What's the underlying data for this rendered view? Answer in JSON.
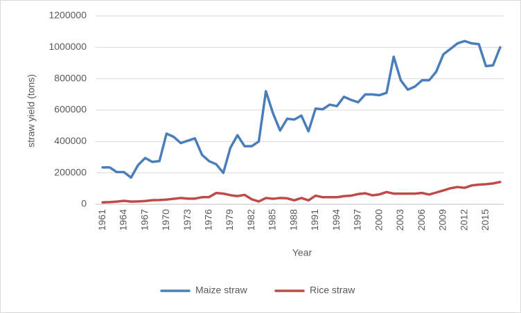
{
  "chart_data": {
    "type": "line",
    "x_label": "Year",
    "y_label": "straw yield (tons)",
    "categories": [
      "1961",
      null,
      null,
      "1964",
      null,
      null,
      "1967",
      null,
      null,
      "1970",
      null,
      null,
      "1973",
      null,
      null,
      "1976",
      null,
      null,
      "1979",
      null,
      null,
      "1982",
      null,
      null,
      "1985",
      null,
      null,
      "1988",
      null,
      null,
      "1991",
      null,
      null,
      "1994",
      null,
      null,
      "1997",
      null,
      null,
      "2000",
      null,
      null,
      "2003",
      null,
      null,
      "2006",
      null,
      null,
      "2009",
      null,
      null,
      "2012",
      null,
      null,
      "2015",
      null,
      null
    ],
    "series": [
      {
        "name": "Maize straw",
        "color": "#4a7ebb",
        "values": [
          235000,
          235000,
          205000,
          205000,
          170000,
          250000,
          295000,
          270000,
          275000,
          450000,
          430000,
          390000,
          405000,
          420000,
          315000,
          275000,
          255000,
          200000,
          360000,
          440000,
          370000,
          370000,
          400000,
          720000,
          580000,
          470000,
          545000,
          540000,
          565000,
          465000,
          610000,
          605000,
          635000,
          625000,
          685000,
          665000,
          650000,
          700000,
          700000,
          695000,
          710000,
          940000,
          790000,
          730000,
          750000,
          790000,
          790000,
          845000,
          955000,
          990000,
          1025000,
          1040000,
          1025000,
          1020000,
          880000,
          885000,
          1000000
        ]
      },
      {
        "name": "Rice straw",
        "color": "#be4b48",
        "values": [
          12000,
          14000,
          17000,
          22000,
          17000,
          18000,
          21000,
          26000,
          27000,
          30000,
          35000,
          40000,
          36000,
          36000,
          45000,
          46000,
          72000,
          68000,
          58000,
          52000,
          60000,
          32000,
          18000,
          40000,
          35000,
          40000,
          38000,
          25000,
          40000,
          25000,
          55000,
          45000,
          45000,
          45000,
          52000,
          55000,
          65000,
          70000,
          57000,
          63000,
          78000,
          68000,
          68000,
          68000,
          68000,
          72000,
          62000,
          75000,
          88000,
          102000,
          110000,
          105000,
          120000,
          125000,
          128000,
          133000,
          142000
        ]
      }
    ],
    "ylim": [
      0,
      1200000
    ],
    "yticks": [
      0,
      200000,
      400000,
      600000,
      800000,
      1000000,
      1200000
    ],
    "grid": true,
    "legend": "bottom"
  }
}
